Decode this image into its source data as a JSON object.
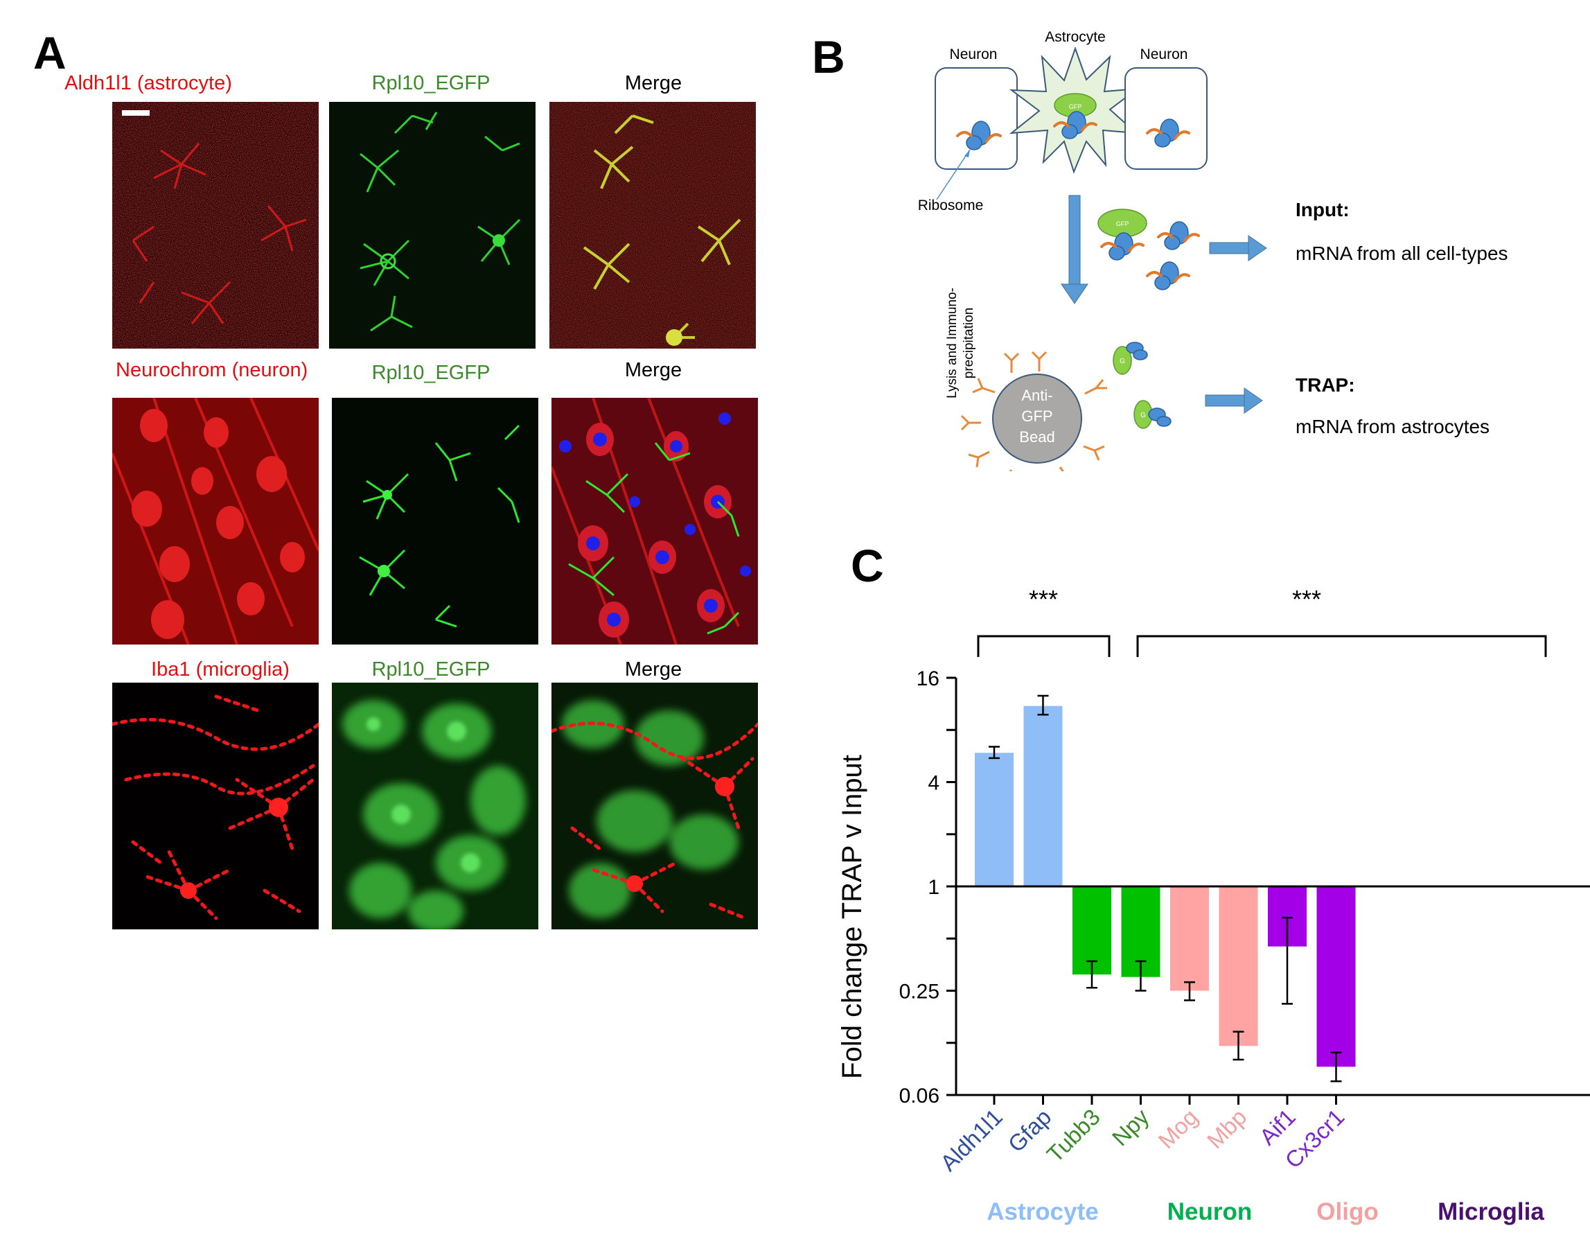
{
  "panelA": {
    "letter": "A",
    "rows": [
      {
        "labels": [
          "Aldh1l1 (astrocyte)",
          "Rpl10_EGFP",
          "Merge"
        ]
      },
      {
        "labels": [
          "Neurochrom (neuron)",
          "Rpl10_EGFP",
          "Merge"
        ]
      },
      {
        "labels": [
          "Iba1 (microglia)",
          "Rpl10_EGFP",
          "Merge"
        ]
      }
    ]
  },
  "panelB": {
    "letter": "B",
    "neuron_left": "Neuron",
    "astrocyte": "Astrocyte",
    "neuron_right": "Neuron",
    "gfp_tag": "GFP",
    "ribosome": "Ribosome",
    "lysis_line1": "Lysis and Immuno-",
    "lysis_line2": "precipitation",
    "bead_line1": "Anti-",
    "bead_line2": "GFP",
    "bead_line3": "Bead",
    "bead_tag": "G",
    "input_title": "Input:",
    "input_desc": "mRNA from all cell-types",
    "trap_title": "TRAP:",
    "trap_desc": "mRNA from astrocytes"
  },
  "panelC": {
    "letter": "C",
    "significance": [
      "***",
      "***"
    ],
    "chart_data": {
      "type": "bar",
      "ylabel": "Fold change TRAP v Input",
      "yscale": "log2",
      "ylim": [
        0.0625,
        16
      ],
      "yticks": [
        0.0625,
        0.25,
        1,
        4,
        16
      ],
      "ytick_labels": [
        "0.06",
        "0.25",
        "1",
        "4",
        "16"
      ],
      "baseline": 1,
      "categories": [
        "Aldh1l1",
        "Gfap",
        "Tubb3",
        "Npy",
        "Mog",
        "Mbp",
        "Aif1",
        "Cx3cr1"
      ],
      "values": [
        5.9,
        11.0,
        0.31,
        0.3,
        0.25,
        0.12,
        0.45,
        0.091
      ],
      "error_low": [
        5.5,
        9.8,
        0.26,
        0.25,
        0.22,
        0.1,
        0.21,
        0.075
      ],
      "error_high": [
        6.4,
        12.6,
        0.37,
        0.37,
        0.28,
        0.145,
        0.66,
        0.11
      ],
      "bar_colors": [
        "#8ebdf7",
        "#8ebdf7",
        "#00c000",
        "#00c000",
        "#ffa3a3",
        "#ffa3a3",
        "#a300e8",
        "#a300e8"
      ],
      "tick_label_colors": [
        "#2e4d9a",
        "#2e4d9a",
        "#3a8a2a",
        "#3a8a2a",
        "#f2a0a0",
        "#f2a0a0",
        "#7a28c8",
        "#7a28c8"
      ],
      "groups": [
        {
          "name": "Astrocyte",
          "color": "#8ebdf7"
        },
        {
          "name": "Neuron",
          "color": "#00b050"
        },
        {
          "name": "Oligo",
          "color": "#f3a0a0"
        },
        {
          "name": "Microglia",
          "color": "#4a1070"
        }
      ]
    }
  }
}
